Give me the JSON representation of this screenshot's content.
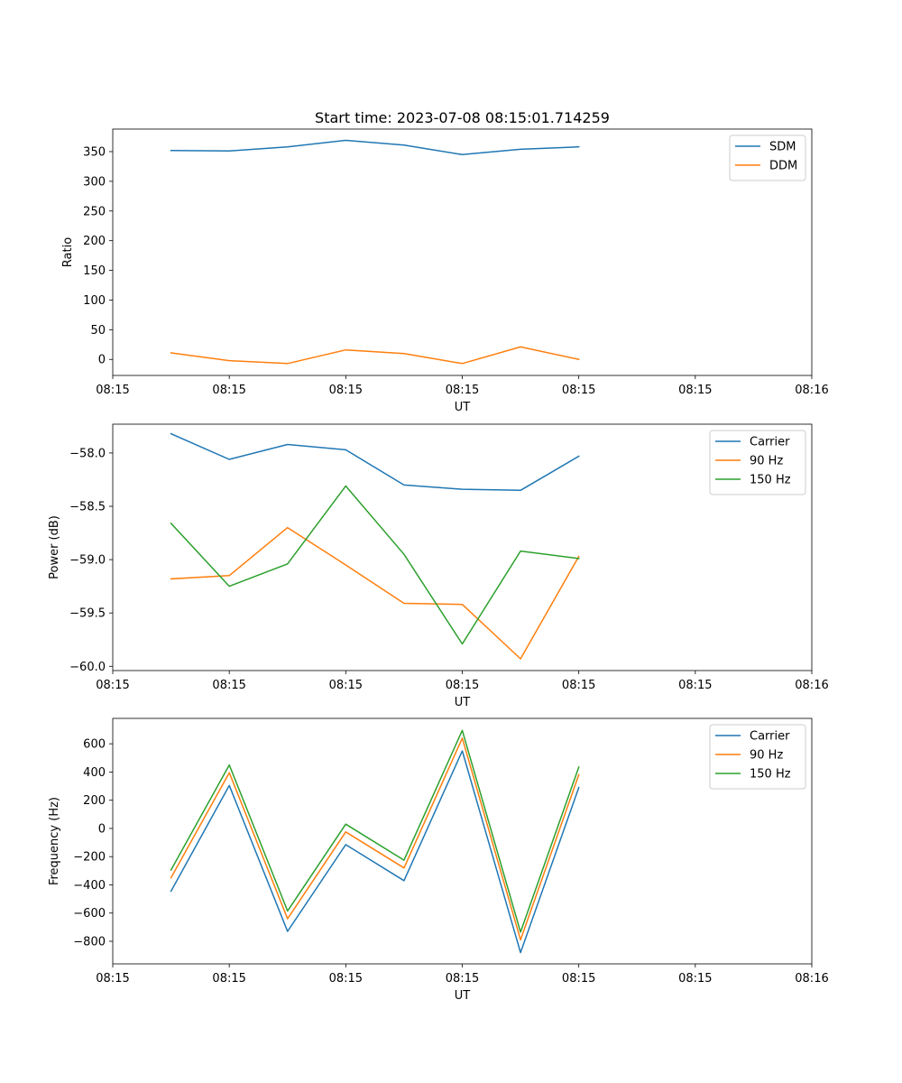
{
  "chart_data": [
    {
      "type": "line",
      "title": "Start time: 2023-07-08 08:15:01.714259",
      "xlabel": "UT",
      "ylabel": "Ratio",
      "x_tick_labels": [
        "08:15",
        "08:15",
        "08:15",
        "08:15",
        "08:15",
        "08:15",
        "08:16"
      ],
      "xlim": [
        0,
        6
      ],
      "x": [
        0.5,
        1.0,
        1.5,
        2.0,
        2.5,
        3.0,
        3.5,
        4.0
      ],
      "ylim": [
        -27,
        388
      ],
      "y_ticks": [
        0,
        50,
        100,
        150,
        200,
        250,
        300,
        350
      ],
      "legend_loc": "upper right",
      "series": [
        {
          "name": "SDM",
          "color": "#1f77b4",
          "values": [
            352,
            351,
            358,
            369,
            361,
            345,
            354,
            358
          ]
        },
        {
          "name": "DDM",
          "color": "#ff7f0e",
          "values": [
            11,
            -2,
            -7,
            16,
            10,
            -7,
            21,
            0
          ]
        }
      ]
    },
    {
      "type": "line",
      "title": "",
      "xlabel": "UT",
      "ylabel": "Power (dB)",
      "x_tick_labels": [
        "08:15",
        "08:15",
        "08:15",
        "08:15",
        "08:15",
        "08:15",
        "08:16"
      ],
      "xlim": [
        0,
        6
      ],
      "x": [
        0.5,
        1.0,
        1.5,
        2.0,
        2.5,
        3.0,
        3.5,
        4.0
      ],
      "ylim": [
        -60.04,
        -57.73
      ],
      "y_ticks": [
        -60.0,
        -59.5,
        -59.0,
        -58.5,
        -58.0
      ],
      "y_tick_labels": [
        "−60.0",
        "−59.5",
        "−59.0",
        "−58.5",
        "−58.0"
      ],
      "legend_loc": "upper right",
      "series": [
        {
          "name": "Carrier",
          "color": "#1f77b4",
          "values": [
            -57.82,
            -58.06,
            -57.92,
            -57.97,
            -58.3,
            -58.34,
            -58.35,
            -58.03
          ]
        },
        {
          "name": "90 Hz",
          "color": "#ff7f0e",
          "values": [
            -59.18,
            -59.15,
            -58.7,
            -59.05,
            -59.41,
            -59.42,
            -59.93,
            -58.97
          ]
        },
        {
          "name": "150 Hz",
          "color": "#2ca02c",
          "values": [
            -58.66,
            -59.25,
            -59.04,
            -58.31,
            -58.95,
            -59.79,
            -58.92,
            -58.99
          ]
        }
      ]
    },
    {
      "type": "line",
      "title": "",
      "xlabel": "UT",
      "ylabel": "Frequency (Hz)",
      "x_tick_labels": [
        "08:15",
        "08:15",
        "08:15",
        "08:15",
        "08:15",
        "08:15",
        "08:16"
      ],
      "xlim": [
        0,
        6
      ],
      "x": [
        0.5,
        1.0,
        1.5,
        2.0,
        2.5,
        3.0,
        3.5,
        4.0
      ],
      "ylim": [
        -960,
        780
      ],
      "y_ticks": [
        -800,
        -600,
        -400,
        -200,
        0,
        200,
        400,
        600
      ],
      "y_tick_labels": [
        "−800",
        "−600",
        "−400",
        "−200",
        "0",
        "200",
        "400",
        "600"
      ],
      "legend_loc": "upper right",
      "series": [
        {
          "name": "Carrier",
          "color": "#1f77b4",
          "values": [
            -445,
            305,
            -730,
            -115,
            -370,
            550,
            -880,
            290
          ]
        },
        {
          "name": "90 Hz",
          "color": "#ff7f0e",
          "values": [
            -350,
            395,
            -640,
            -25,
            -280,
            640,
            -790,
            380
          ]
        },
        {
          "name": "150 Hz",
          "color": "#2ca02c",
          "values": [
            -295,
            450,
            -585,
            30,
            -225,
            695,
            -735,
            435
          ]
        }
      ]
    }
  ]
}
